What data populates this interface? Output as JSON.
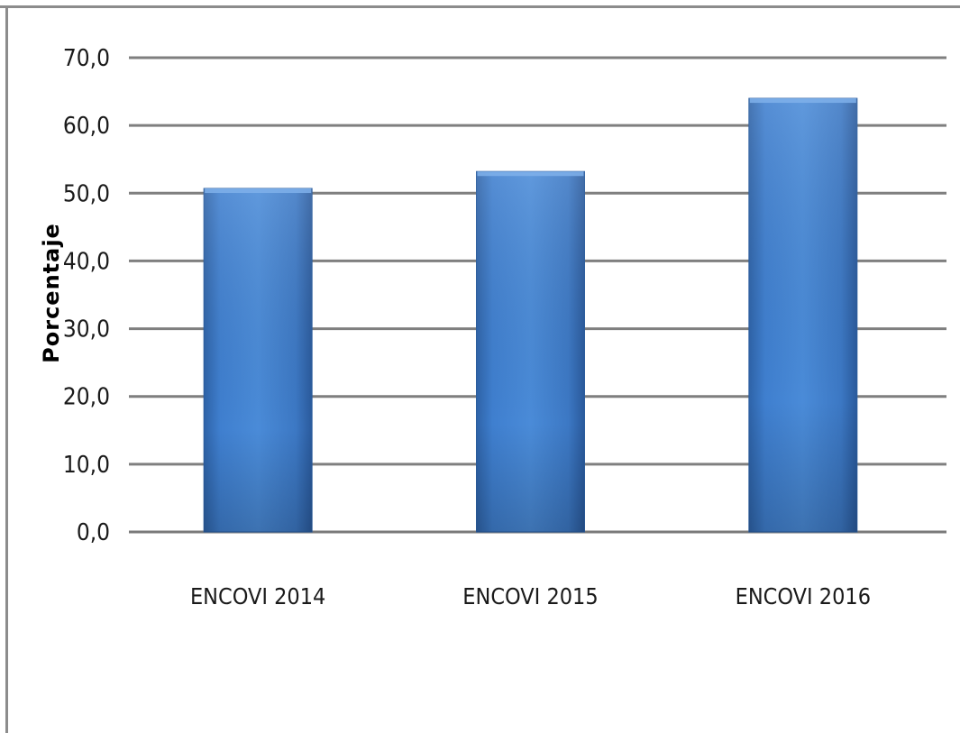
{
  "chart_data": {
    "type": "bar",
    "title": "",
    "xlabel": "",
    "ylabel": "Porcentaje",
    "categories": [
      "ENCOVI 2014",
      "ENCOVI 2015",
      "ENCOVI 2016"
    ],
    "values": [
      50.7,
      53.2,
      64.0
    ],
    "ylim": [
      0,
      70
    ],
    "yticks": [
      "0,0",
      "10,0",
      "20,0",
      "30,0",
      "40,0",
      "50,0",
      "60,0",
      "70,0"
    ],
    "grid": true,
    "bar_color": "#3d7ccc"
  }
}
